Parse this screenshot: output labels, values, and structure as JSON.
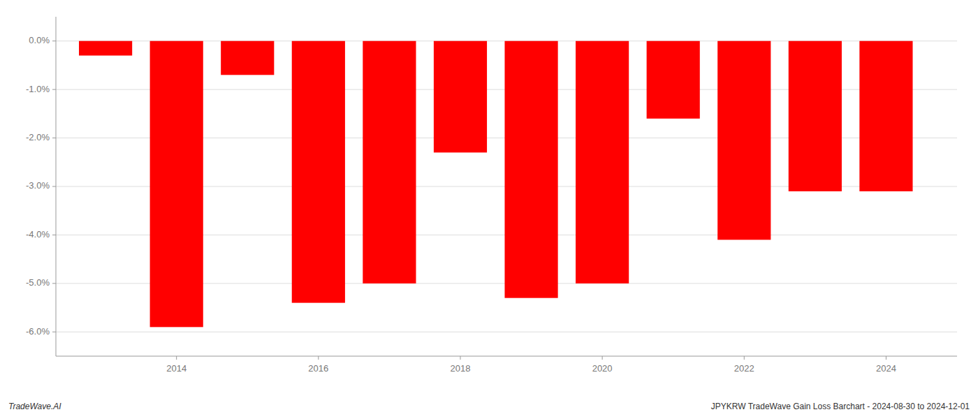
{
  "chart_data": {
    "type": "bar",
    "x": [
      2013,
      2014,
      2015,
      2016,
      2017,
      2018,
      2019,
      2020,
      2021,
      2022,
      2023,
      2024
    ],
    "values": [
      -0.003,
      -0.059,
      -0.007,
      -0.054,
      -0.05,
      -0.023,
      -0.053,
      -0.05,
      -0.016,
      -0.041,
      -0.031,
      -0.031
    ],
    "color": "#ff0000",
    "xlim": [
      2012.3,
      2025.0
    ],
    "xticks": [
      2014,
      2016,
      2018,
      2020,
      2022,
      2024
    ],
    "ylim": [
      -0.065,
      0.005
    ],
    "yticks": [
      {
        "value": 0.0,
        "label": "0.0%"
      },
      {
        "value": -0.01,
        "label": "-1.0%"
      },
      {
        "value": -0.02,
        "label": "-2.0%"
      },
      {
        "value": -0.03,
        "label": "-3.0%"
      },
      {
        "value": -0.04,
        "label": "-4.0%"
      },
      {
        "value": -0.05,
        "label": "-5.0%"
      },
      {
        "value": -0.06,
        "label": "-6.0%"
      }
    ],
    "grid": true,
    "annotations": [
      "TradeWave.AI",
      "JPYKRW TradeWave Gain Loss Barchart - 2024-08-30 to 2024-12-01"
    ]
  }
}
